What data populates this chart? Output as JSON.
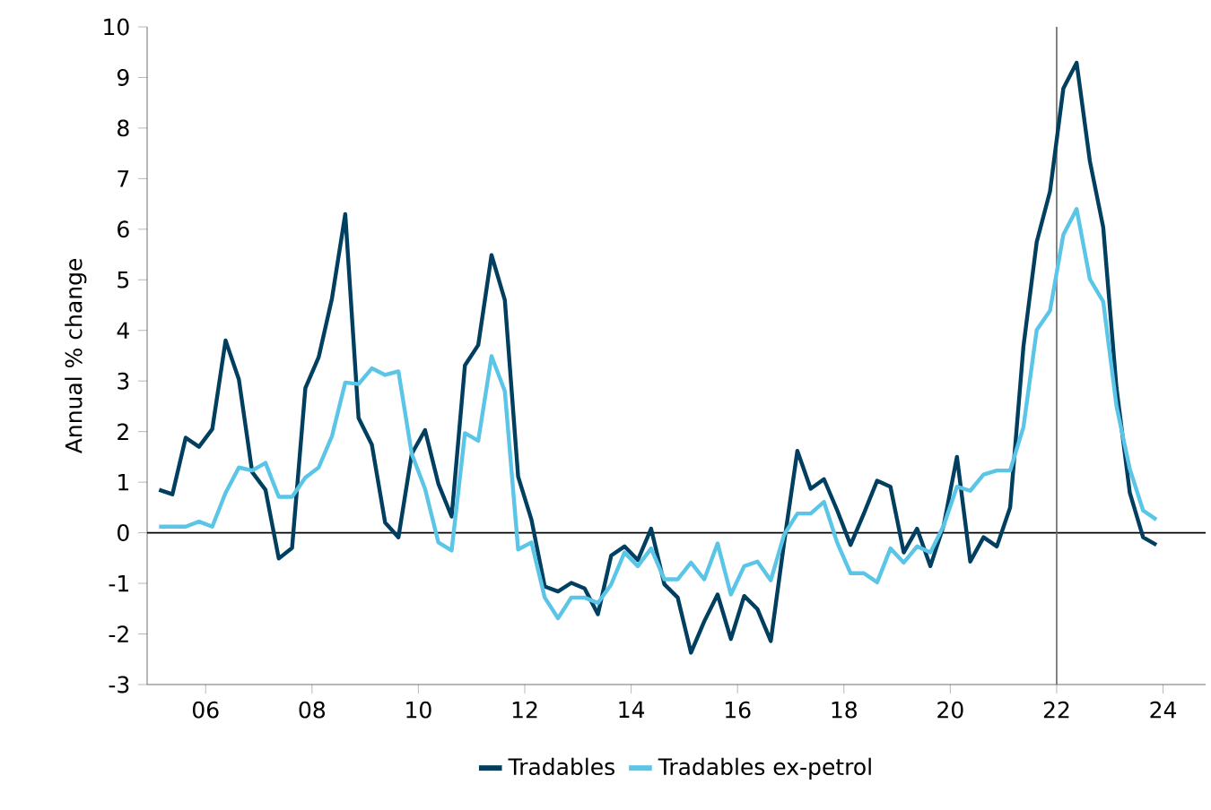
{
  "chart_data": {
    "type": "line",
    "ylabel": "Annual % change",
    "x": [
      2005.125,
      2005.375,
      2005.625,
      2005.875,
      2006.125,
      2006.375,
      2006.625,
      2006.875,
      2007.125,
      2007.375,
      2007.625,
      2007.875,
      2008.125,
      2008.375,
      2008.625,
      2008.875,
      2009.125,
      2009.375,
      2009.625,
      2009.875,
      2010.125,
      2010.375,
      2010.625,
      2010.875,
      2011.125,
      2011.375,
      2011.625,
      2011.875,
      2012.125,
      2012.375,
      2012.625,
      2012.875,
      2013.125,
      2013.375,
      2013.625,
      2013.875,
      2014.125,
      2014.375,
      2014.625,
      2014.875,
      2015.125,
      2015.375,
      2015.625,
      2015.875,
      2016.125,
      2016.375,
      2016.625,
      2016.875,
      2017.125,
      2017.375,
      2017.625,
      2017.875,
      2018.125,
      2018.375,
      2018.625,
      2018.875,
      2019.125,
      2019.375,
      2019.625,
      2019.875,
      2020.125,
      2020.375,
      2020.625,
      2020.875,
      2021.125,
      2021.375,
      2021.625,
      2021.875,
      2022.125,
      2022.375,
      2022.625,
      2022.875,
      2023.125,
      2023.375,
      2023.625,
      2023.875
    ],
    "series": [
      {
        "name": "Tradables",
        "color": "#003f5f",
        "values": [
          0.85,
          0.76,
          1.88,
          1.7,
          2.05,
          3.8,
          3.03,
          1.2,
          0.85,
          -0.51,
          -0.3,
          2.86,
          3.47,
          4.63,
          6.3,
          2.27,
          1.74,
          0.2,
          -0.09,
          1.56,
          2.03,
          0.97,
          0.32,
          3.31,
          3.71,
          5.49,
          4.6,
          1.11,
          0.26,
          -1.06,
          -1.16,
          -0.99,
          -1.1,
          -1.61,
          -0.45,
          -0.27,
          -0.54,
          0.08,
          -1.02,
          -1.28,
          -2.37,
          -1.75,
          -1.22,
          -2.1,
          -1.25,
          -1.51,
          -2.14,
          -0.2,
          1.62,
          0.87,
          1.06,
          0.44,
          -0.24,
          0.38,
          1.03,
          0.91,
          -0.39,
          0.08,
          -0.66,
          0.14,
          1.5,
          -0.57,
          -0.09,
          -0.27,
          0.5,
          3.68,
          5.75,
          6.75,
          8.78,
          9.29,
          7.34,
          6.04,
          2.86,
          0.79,
          -0.09,
          -0.24
        ]
      },
      {
        "name": "Tradables ex-petrol",
        "color": "#5bc5e8",
        "values": [
          0.12,
          0.12,
          0.12,
          0.22,
          0.12,
          0.79,
          1.29,
          1.23,
          1.38,
          0.71,
          0.71,
          1.09,
          1.29,
          1.91,
          2.97,
          2.94,
          3.25,
          3.12,
          3.19,
          1.56,
          0.87,
          -0.19,
          -0.35,
          1.97,
          1.82,
          3.49,
          2.8,
          -0.33,
          -0.19,
          -1.28,
          -1.69,
          -1.28,
          -1.28,
          -1.39,
          -1.02,
          -0.39,
          -0.66,
          -0.31,
          -0.92,
          -0.92,
          -0.59,
          -0.92,
          -0.21,
          -1.22,
          -0.66,
          -0.57,
          -0.94,
          -0.04,
          0.38,
          0.38,
          0.61,
          -0.2,
          -0.8,
          -0.8,
          -0.98,
          -0.31,
          -0.59,
          -0.27,
          -0.39,
          0.14,
          0.91,
          0.83,
          1.15,
          1.23,
          1.23,
          2.09,
          4.01,
          4.39,
          5.89,
          6.4,
          5.01,
          4.57,
          2.5,
          1.26,
          0.44,
          0.26
        ]
      }
    ],
    "xlim": [
      2004.9,
      2024.8
    ],
    "ylim": [
      -3,
      10
    ],
    "xticks": [
      {
        "value": 2006,
        "label": "06"
      },
      {
        "value": 2008,
        "label": "08"
      },
      {
        "value": 2010,
        "label": "10"
      },
      {
        "value": 2012,
        "label": "12"
      },
      {
        "value": 2014,
        "label": "14"
      },
      {
        "value": 2016,
        "label": "16"
      },
      {
        "value": 2018,
        "label": "18"
      },
      {
        "value": 2020,
        "label": "20"
      },
      {
        "value": 2022,
        "label": "22"
      },
      {
        "value": 2024,
        "label": "24"
      }
    ],
    "yticks": [
      -3,
      -2,
      -1,
      0,
      1,
      2,
      3,
      4,
      5,
      6,
      7,
      8,
      9,
      10
    ],
    "ref_lines": [
      {
        "axis": "y",
        "value": 0,
        "color": "#000000"
      },
      {
        "axis": "x",
        "value": 2022,
        "color": "#666666"
      }
    ],
    "grid": false,
    "legend": "bottom",
    "marker": "none",
    "line_style": "solid"
  }
}
